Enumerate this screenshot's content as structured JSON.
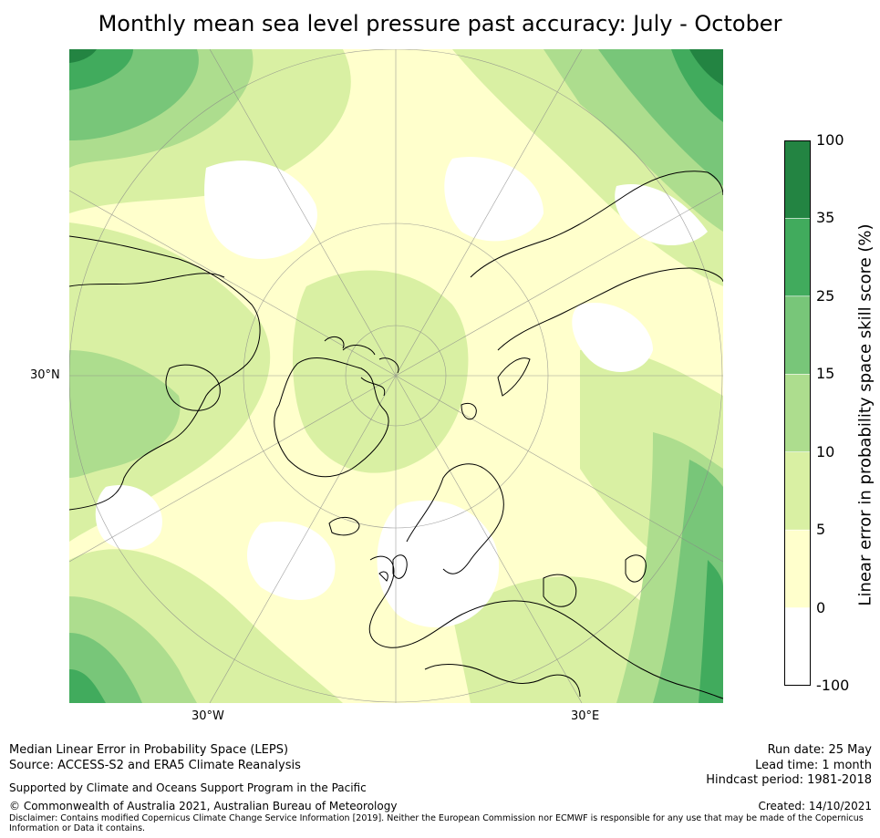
{
  "title": "Monthly mean sea level pressure past accuracy: July - October",
  "map": {
    "projection": "north-polar-stereographic",
    "graticule_labels": {
      "lat": "30°N",
      "lon_left": "30°W",
      "lon_right": "30°E"
    }
  },
  "colorbar": {
    "label": "Linear error in probability space skill score (%)",
    "ticks": [
      "100",
      "35",
      "25",
      "15",
      "10",
      "5",
      "0",
      "-100"
    ],
    "bins": [
      {
        "range": "35 to 100",
        "color": "#238442"
      },
      {
        "range": "25 to 35",
        "color": "#41ab5d"
      },
      {
        "range": "15 to 25",
        "color": "#78c679"
      },
      {
        "range": "10 to 15",
        "color": "#addd8e"
      },
      {
        "range": "5 to 10",
        "color": "#d9f0a3"
      },
      {
        "range": "0 to 5",
        "color": "#ffffcc"
      },
      {
        "range": "-100 to 0",
        "color": "#ffffff"
      }
    ]
  },
  "footer": {
    "left1": "Median Linear Error in Probability Space (LEPS)",
    "left2": "Source: ACCESS-S2 and ERA5 Climate Reanalysis",
    "left3": "Supported by Climate and Oceans Support Program in the Pacific",
    "left4": "© Commonwealth of Australia 2021, Australian Bureau of Meteorology",
    "disclaimer1": "Disclaimer: Contains modified Copernicus Climate Change Service Information [2019]. Neither the European Commission nor ECMWF is responsible for any use that may be made of the Copernicus",
    "disclaimer2": "Information or Data it contains.",
    "run_date": "Run date: 25 May",
    "lead_time": "Lead time: 1 month",
    "hindcast": "Hindcast period: 1981-2018",
    "created": "Created: 14/10/2021"
  }
}
